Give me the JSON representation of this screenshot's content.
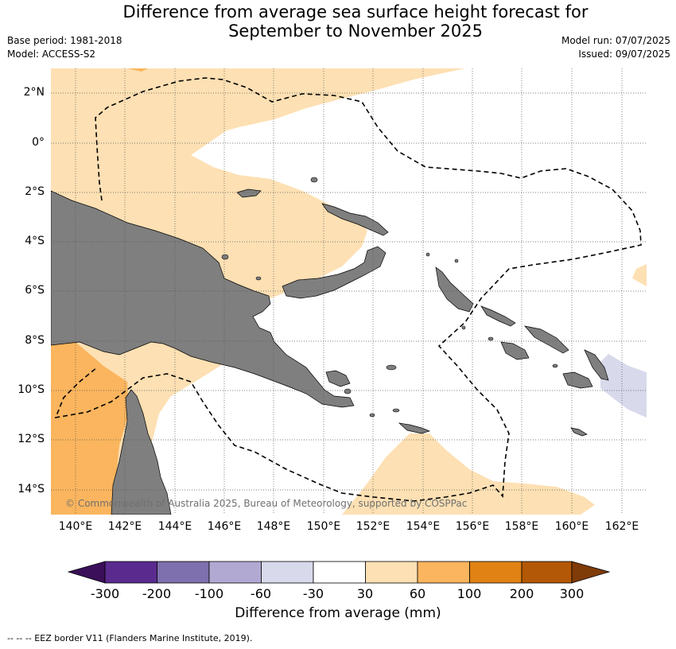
{
  "title_line1": "Difference from average sea surface height forecast for",
  "title_line2": "September to November 2025",
  "meta": {
    "base_period": "Base period: 1981-2018",
    "model": "Model: ACCESS-S2",
    "model_run": "Model run: 07/07/2025",
    "issued": "Issued: 09/07/2025"
  },
  "map": {
    "lat_labels": [
      "2°N",
      "0°",
      "2°S",
      "4°S",
      "6°S",
      "8°S",
      "10°S",
      "12°S",
      "14°S"
    ],
    "lon_labels": [
      "140°E",
      "142°E",
      "144°E",
      "146°E",
      "148°E",
      "150°E",
      "152°E",
      "154°E",
      "156°E",
      "158°E",
      "160°E",
      "162°E"
    ],
    "copyright": "© Commonwealth of Australia 2025, Bureau of Meteorology, supported by COSPPac",
    "colors": {
      "land": "#7f7f7f",
      "anomaly_30_60": "#fde0b3",
      "anomaly_60_100": "#fbb55e",
      "anomaly_neg60_neg30": "#d8d9eb",
      "background": "#ffffff"
    }
  },
  "colorbar": {
    "tick_labels": [
      "-300",
      "-200",
      "-100",
      "-60",
      "-30",
      "30",
      "60",
      "100",
      "200",
      "300"
    ],
    "colors": [
      "#3b0f59",
      "#5a2a8f",
      "#7e6fae",
      "#b2a9d3",
      "#d8d9eb",
      "#ffffff",
      "#fde0b3",
      "#fbb55e",
      "#e08214",
      "#b35806",
      "#7f3b08"
    ],
    "label": "Difference from average (mm)"
  },
  "footnote": "--  --  -- EEZ border V11 (Flanders Marine Institute, 2019)."
}
